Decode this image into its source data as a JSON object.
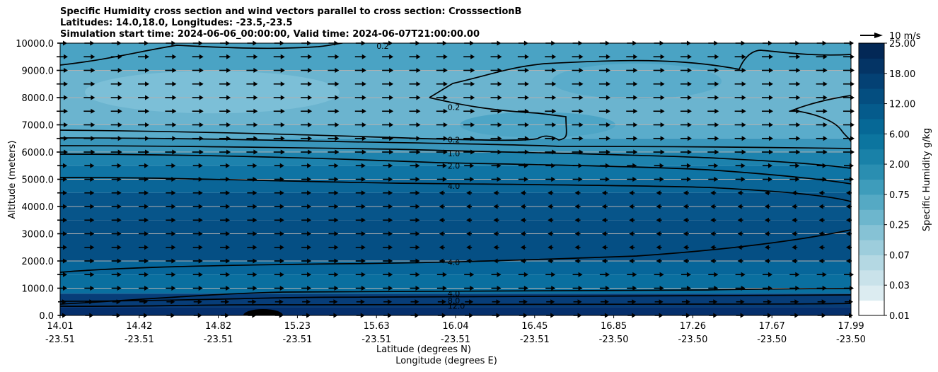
{
  "chart_data": {
    "type": "contourf",
    "title_lines": [
      "Specific Humidity cross section and wind vectors parallel to cross section: CrosssectionB",
      "Latitudes: 14.0,18.0, Longitudes: -23.5,-23.5",
      "Simulation start time: 2024-06-06_00:00:00, Valid time: 2024-06-07T21:00:00.00"
    ],
    "ylabel": "Altitude (meters)",
    "xlabel_lat": "Latitude (degrees N)",
    "xlabel_lon": "Longitude (degrees E)",
    "ylim": [
      0,
      10000
    ],
    "y_ticks": [
      "0.0",
      "1000.0",
      "2000.0",
      "3000.0",
      "4000.0",
      "5000.0",
      "6000.0",
      "7000.0",
      "8000.0",
      "9000.0",
      "10000.0"
    ],
    "x_ticks": [
      {
        "lat": "14.01",
        "lon": "-23.51"
      },
      {
        "lat": "14.42",
        "lon": "-23.51"
      },
      {
        "lat": "14.82",
        "lon": "-23.51"
      },
      {
        "lat": "15.23",
        "lon": "-23.51"
      },
      {
        "lat": "15.63",
        "lon": "-23.51"
      },
      {
        "lat": "16.04",
        "lon": "-23.51"
      },
      {
        "lat": "16.45",
        "lon": "-23.51"
      },
      {
        "lat": "16.85",
        "lon": "-23.50"
      },
      {
        "lat": "17.26",
        "lon": "-23.50"
      },
      {
        "lat": "17.67",
        "lon": "-23.50"
      },
      {
        "lat": "17.99",
        "lon": "-23.50"
      }
    ],
    "colorbar": {
      "label": "Specific Humidity g/kg",
      "levels": [
        0.01,
        0.02,
        0.03,
        0.05,
        0.07,
        0.1,
        0.25,
        0.5,
        0.75,
        1.0,
        2.0,
        4.0,
        6.0,
        8.0,
        12.0,
        14.0,
        18.0,
        20.0,
        25.0
      ],
      "tick_labels": [
        "0.01",
        "0.03",
        "0.07",
        "0.25",
        "0.75",
        "2.00",
        "6.00",
        "12.00",
        "18.00",
        "25.00"
      ]
    },
    "contour_labels": [
      {
        "text": "0.2",
        "alt_m": 9900,
        "xi": 4.0
      },
      {
        "text": "0.2",
        "alt_m": 7650,
        "xi": 4.9
      },
      {
        "text": "0.2",
        "alt_m": 6450,
        "xi": 4.9
      },
      {
        "text": "1.0",
        "alt_m": 5950,
        "xi": 4.9
      },
      {
        "text": "2.0",
        "alt_m": 5500,
        "xi": 4.9
      },
      {
        "text": "4.0",
        "alt_m": 4750,
        "xi": 4.9
      },
      {
        "text": "4.0",
        "alt_m": 1950,
        "xi": 4.9
      },
      {
        "text": "4.0",
        "alt_m": 800,
        "xi": 4.9
      },
      {
        "text": "8.0",
        "alt_m": 550,
        "xi": 4.9
      },
      {
        "text": "12.0",
        "alt_m": 350,
        "xi": 4.9
      }
    ],
    "quiver_key": {
      "label": "10 m/s",
      "speed_ms": 10
    }
  }
}
